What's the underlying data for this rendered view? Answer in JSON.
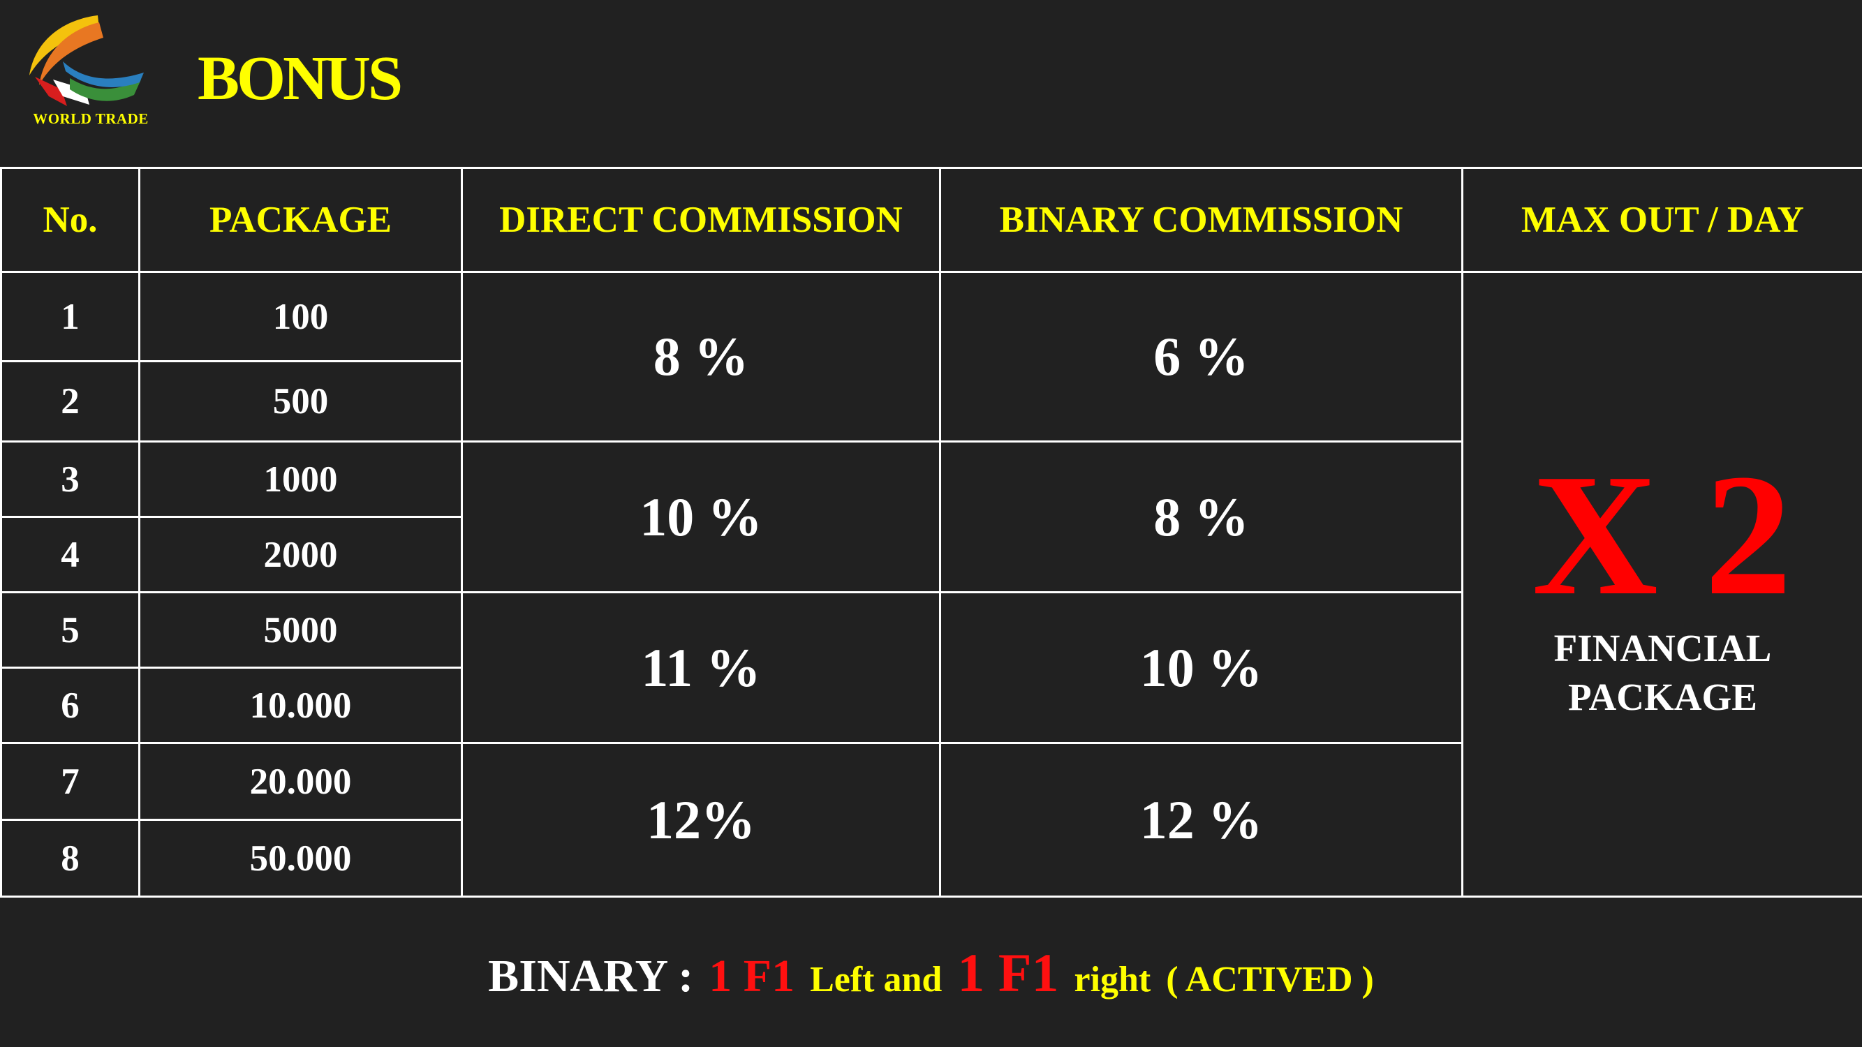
{
  "header": {
    "logo_text": "WORLD TRADE",
    "title": "BONUS"
  },
  "table": {
    "columns": [
      "No.",
      "PACKAGE",
      "DIRECT COMMISSION",
      "BINARY COMMISSION",
      "MAX OUT / DAY"
    ],
    "rows": [
      {
        "no": "1",
        "package": "100"
      },
      {
        "no": "2",
        "package": "500"
      },
      {
        "no": "3",
        "package": "1000"
      },
      {
        "no": "4",
        "package": "2000"
      },
      {
        "no": "5",
        "package": "5000"
      },
      {
        "no": "6",
        "package": "10.000"
      },
      {
        "no": "7",
        "package": "20.000"
      },
      {
        "no": "8",
        "package": "50.000"
      }
    ],
    "tiers": [
      {
        "direct": "8 %",
        "binary": "6 %"
      },
      {
        "direct": "10 %",
        "binary": "8 %"
      },
      {
        "direct": "11 %",
        "binary": "10 %"
      },
      {
        "direct": "12%",
        "binary": "12 %"
      }
    ],
    "max_out": {
      "multiplier": "X 2",
      "label_line1": "FINANCIAL",
      "label_line2": "PACKAGE"
    }
  },
  "footer": {
    "prefix": "BINARY :",
    "left_count": "1 F1",
    "left_text": "Left and",
    "right_count": "1 F1",
    "right_text": "right",
    "status": "( ACTIVED )"
  },
  "colors": {
    "background": "#212121",
    "accent_yellow": "#ffff00",
    "accent_red": "#ff0000",
    "text": "#ffffff",
    "border": "#ffffff"
  },
  "icons": {
    "logo": "world-trade-logo-icon"
  }
}
